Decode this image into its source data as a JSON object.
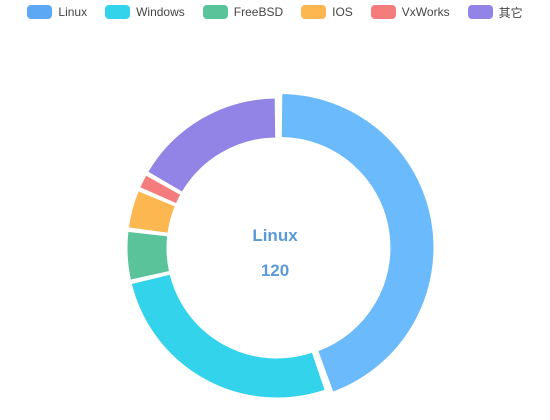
{
  "legend": {
    "items": [
      {
        "label": "Linux",
        "color": "#5ca8f5"
      },
      {
        "label": "Windows",
        "color": "#33d3ec"
      },
      {
        "label": "FreeBSD",
        "color": "#5bc39a"
      },
      {
        "label": "IOS",
        "color": "#fdb751"
      },
      {
        "label": "VxWorks",
        "color": "#f57c7c"
      },
      {
        "label": "其它",
        "color": "#9184e6"
      }
    ]
  },
  "center": {
    "name": "Linux",
    "value": "120"
  },
  "chart_data": {
    "type": "pie",
    "donut": true,
    "highlighted": "Linux",
    "categories": [
      "Linux",
      "Windows",
      "FreeBSD",
      "IOS",
      "VxWorks",
      "其它"
    ],
    "values": [
      120,
      72,
      15,
      12,
      5,
      45
    ],
    "colors": [
      "#6bbbfc",
      "#33d3ec",
      "#5bc39a",
      "#fdb751",
      "#f57c7c",
      "#9184e6"
    ],
    "legend_position": "top-center"
  }
}
